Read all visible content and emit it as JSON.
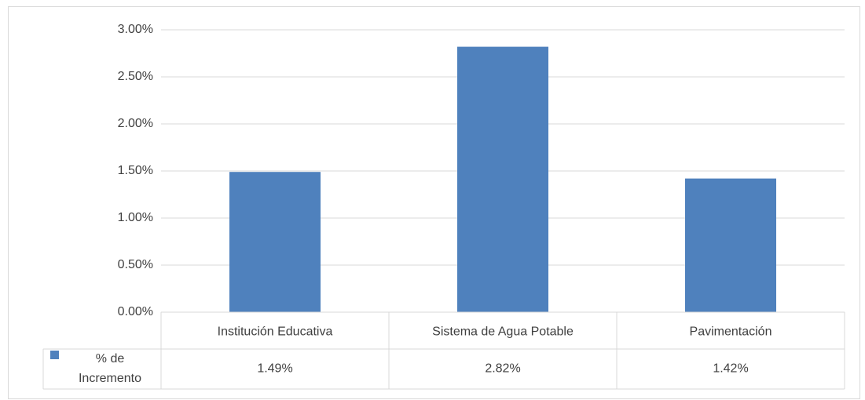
{
  "chart_data": {
    "type": "bar",
    "categories": [
      "Institución Educativa",
      "Sistema de Agua Potable",
      "Pavimentación"
    ],
    "series": [
      {
        "name": "% de Incremento",
        "color": "#4f81bd",
        "values": [
          1.49,
          2.82,
          1.42
        ],
        "value_labels": [
          "1.49%",
          "2.82%",
          "1.42%"
        ]
      }
    ],
    "ylim": [
      0,
      3
    ],
    "yticks": [
      {
        "value": 0,
        "label": "0.00%"
      },
      {
        "value": 0.5,
        "label": "0.50%"
      },
      {
        "value": 1,
        "label": "1.00%"
      },
      {
        "value": 1.5,
        "label": "1.50%"
      },
      {
        "value": 2,
        "label": "2.00%"
      },
      {
        "value": 2.5,
        "label": "2.50%"
      },
      {
        "value": 3,
        "label": "3.00%"
      }
    ],
    "grid": true,
    "data_table": true
  }
}
